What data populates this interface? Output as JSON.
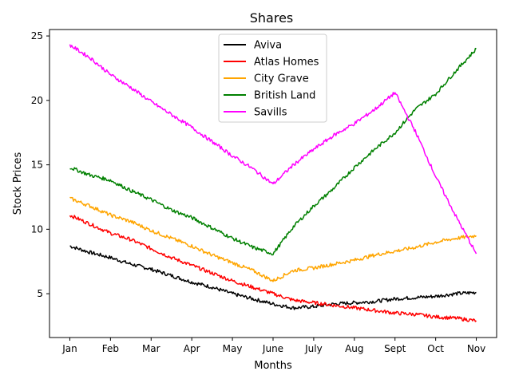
{
  "chart_data": {
    "type": "line",
    "title": "Shares",
    "xlabel": "Months",
    "ylabel": "Stock Prices",
    "x_tick_labels": [
      "Jan",
      "Feb",
      "Mar",
      "Apr",
      "May",
      "June",
      "July",
      "Aug",
      "Sept",
      "Oct",
      "Nov"
    ],
    "x_tick_values": [
      0,
      1,
      2,
      3,
      4,
      5,
      6,
      7,
      8,
      9,
      10
    ],
    "xlim": [
      -0.5,
      10.5
    ],
    "y_ticks": [
      5,
      10,
      15,
      20,
      25
    ],
    "ylim": [
      1.6,
      25.5
    ],
    "grid": false,
    "legend_position": "top-center",
    "series": [
      {
        "name": "Aviva",
        "color": "#000000",
        "x": [
          0,
          0.5,
          1,
          1.5,
          2,
          2.5,
          3,
          3.5,
          4,
          4.5,
          5,
          5.5,
          6,
          6.5,
          7,
          7.5,
          8,
          8.5,
          9,
          9.5,
          10
        ],
        "values": [
          8.7,
          8.2,
          7.8,
          7.3,
          6.9,
          6.4,
          5.9,
          5.5,
          5.0,
          4.6,
          4.2,
          3.9,
          4.0,
          4.2,
          4.3,
          4.4,
          4.6,
          4.7,
          4.8,
          5.0,
          5.1
        ]
      },
      {
        "name": "Atlas Homes",
        "color": "#ff0000",
        "x": [
          0,
          0.5,
          1,
          1.5,
          2,
          2.5,
          3,
          3.5,
          4,
          4.5,
          5,
          5.5,
          6,
          6.5,
          7,
          7.5,
          8,
          8.5,
          9,
          9.5,
          10
        ],
        "values": [
          11.1,
          10.4,
          9.7,
          9.2,
          8.5,
          7.8,
          7.2,
          6.6,
          6.0,
          5.5,
          5.0,
          4.5,
          4.3,
          4.1,
          3.9,
          3.7,
          3.5,
          3.4,
          3.2,
          3.1,
          2.9
        ]
      },
      {
        "name": "City Grave",
        "color": "#ffa500",
        "x": [
          0,
          0.5,
          1,
          1.5,
          2,
          2.5,
          3,
          3.5,
          4,
          4.5,
          5,
          5.5,
          6,
          6.5,
          7,
          7.5,
          8,
          8.5,
          9,
          9.5,
          10
        ],
        "values": [
          12.4,
          11.8,
          11.1,
          10.6,
          9.9,
          9.3,
          8.7,
          8.0,
          7.4,
          6.8,
          6.0,
          6.8,
          7.0,
          7.3,
          7.6,
          8.0,
          8.3,
          8.6,
          9.0,
          9.3,
          9.5
        ]
      },
      {
        "name": "British Land",
        "color": "#008000",
        "x": [
          0,
          0.5,
          1,
          1.5,
          2,
          2.5,
          3,
          3.5,
          4,
          4.5,
          5,
          5.5,
          6,
          6.5,
          7,
          7.5,
          8,
          8.5,
          9,
          9.5,
          10
        ],
        "values": [
          14.8,
          14.2,
          13.8,
          13.0,
          12.3,
          11.5,
          10.9,
          10.1,
          9.3,
          8.6,
          8.1,
          10.2,
          11.8,
          13.2,
          14.8,
          16.2,
          17.5,
          19.3,
          20.5,
          22.3,
          24.0
        ]
      },
      {
        "name": "Savills",
        "color": "#ff00ff",
        "x": [
          0,
          0.5,
          1,
          1.5,
          2,
          2.5,
          3,
          3.5,
          4,
          4.5,
          5,
          5.5,
          6,
          6.5,
          7,
          7.5,
          8,
          8.5,
          9,
          9.5,
          10
        ],
        "values": [
          24.3,
          23.3,
          22.0,
          21.0,
          19.9,
          18.9,
          17.9,
          16.8,
          15.7,
          14.7,
          13.5,
          15.0,
          16.2,
          17.3,
          18.2,
          19.3,
          20.6,
          17.6,
          14.1,
          11.0,
          8.1
        ]
      }
    ]
  }
}
